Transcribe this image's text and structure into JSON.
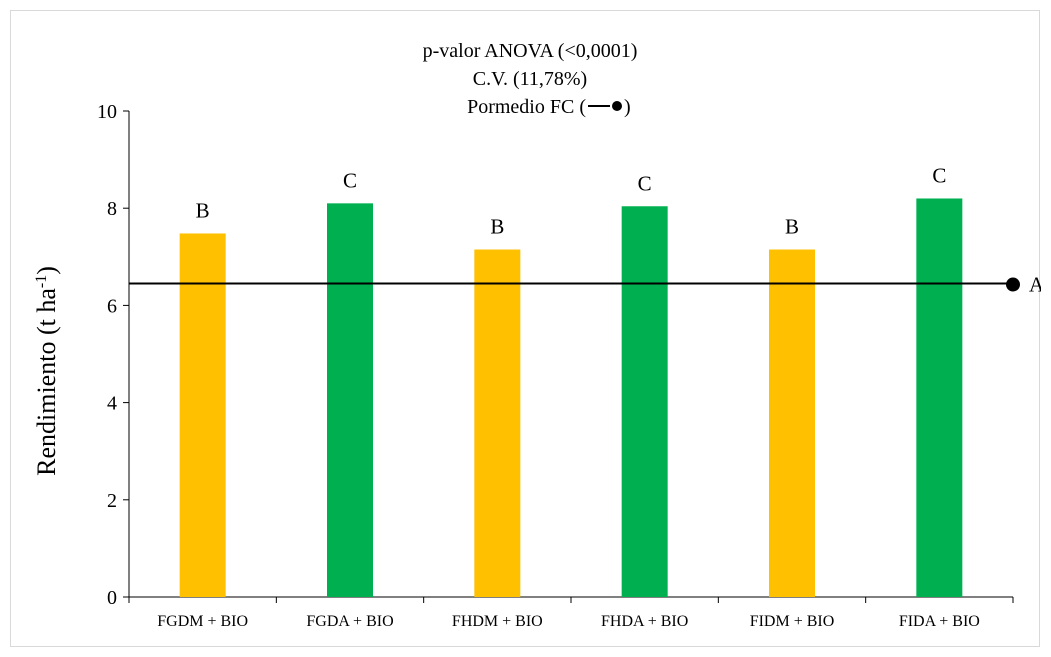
{
  "chart_data": {
    "type": "bar",
    "title_lines": [
      "p-valor ANOVA (<0,0001)",
      "C.V. (11,78%)"
    ],
    "legend_text": "Pormedio FC (",
    "legend_text_end": ")",
    "ylabel": "Rendimiento  (t ha",
    "ylabel_sup": "-1",
    "ylabel_end": ")",
    "ylim": [
      0,
      10
    ],
    "y_ticks": [
      "0",
      "2",
      "4",
      "6",
      "8",
      "10"
    ],
    "categories": [
      "FGDM + BIO",
      "FGDA + BIO",
      "FHDM + BIO",
      "FHDA + BIO",
      "FIDM + BIO",
      "FIDA + BIO"
    ],
    "values": [
      7.48,
      8.1,
      7.15,
      8.04,
      7.15,
      8.2
    ],
    "letters": [
      "B",
      "C",
      "B",
      "C",
      "B",
      "C"
    ],
    "colors": [
      "#FFC000",
      "#00B050",
      "#FFC000",
      "#00B050",
      "#FFC000",
      "#00B050"
    ],
    "reference_line": {
      "value": 6.45,
      "letter": "A",
      "color": "#000000"
    },
    "grid": false
  }
}
